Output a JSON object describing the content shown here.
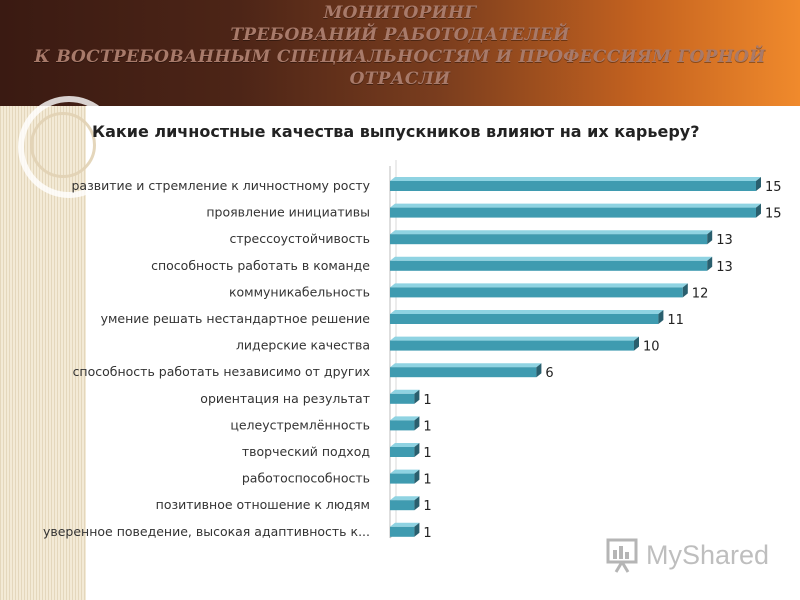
{
  "header": {
    "lines": [
      "МОНИТОРИНГ",
      "ТРЕБОВАНИЙ РАБОТОДАТЕЛЕЙ",
      "К ВОСТРЕБОВАННЫМ СПЕЦИАЛЬНОСТЯМ И ПРОФЕССИЯМ ГОРНОЙ",
      "ОТРАСЛИ"
    ]
  },
  "watermark": {
    "text": "MyShared"
  },
  "colors": {
    "bar": "#3f9bb0",
    "bar_top": "#8fd3e2",
    "bar_shadow": "#2a5f6e"
  },
  "chart_data": {
    "type": "bar",
    "orientation": "horizontal",
    "title": "Какие личностные качества выпускников влияют на их карьеру?",
    "categories": [
      "развитие и  стремление к личностному росту",
      "проявление инициативы",
      "стрессоустойчивость",
      "способность  работать в команде",
      "коммуникабельность",
      "умение решать нестандартное решение",
      "лидерские качества",
      "способность  работать независимо от других",
      "ориентация на результат",
      "целеустремлённость",
      "творческий  подход",
      "работоспособность",
      "позитивное отношение к людям",
      "уверенное поведение, высокая адаптивность к..."
    ],
    "values": [
      15,
      15,
      13,
      13,
      12,
      11,
      10,
      6,
      1,
      1,
      1,
      1,
      1,
      1
    ],
    "xlim": [
      0,
      15
    ],
    "grid": false,
    "legend": "none"
  }
}
